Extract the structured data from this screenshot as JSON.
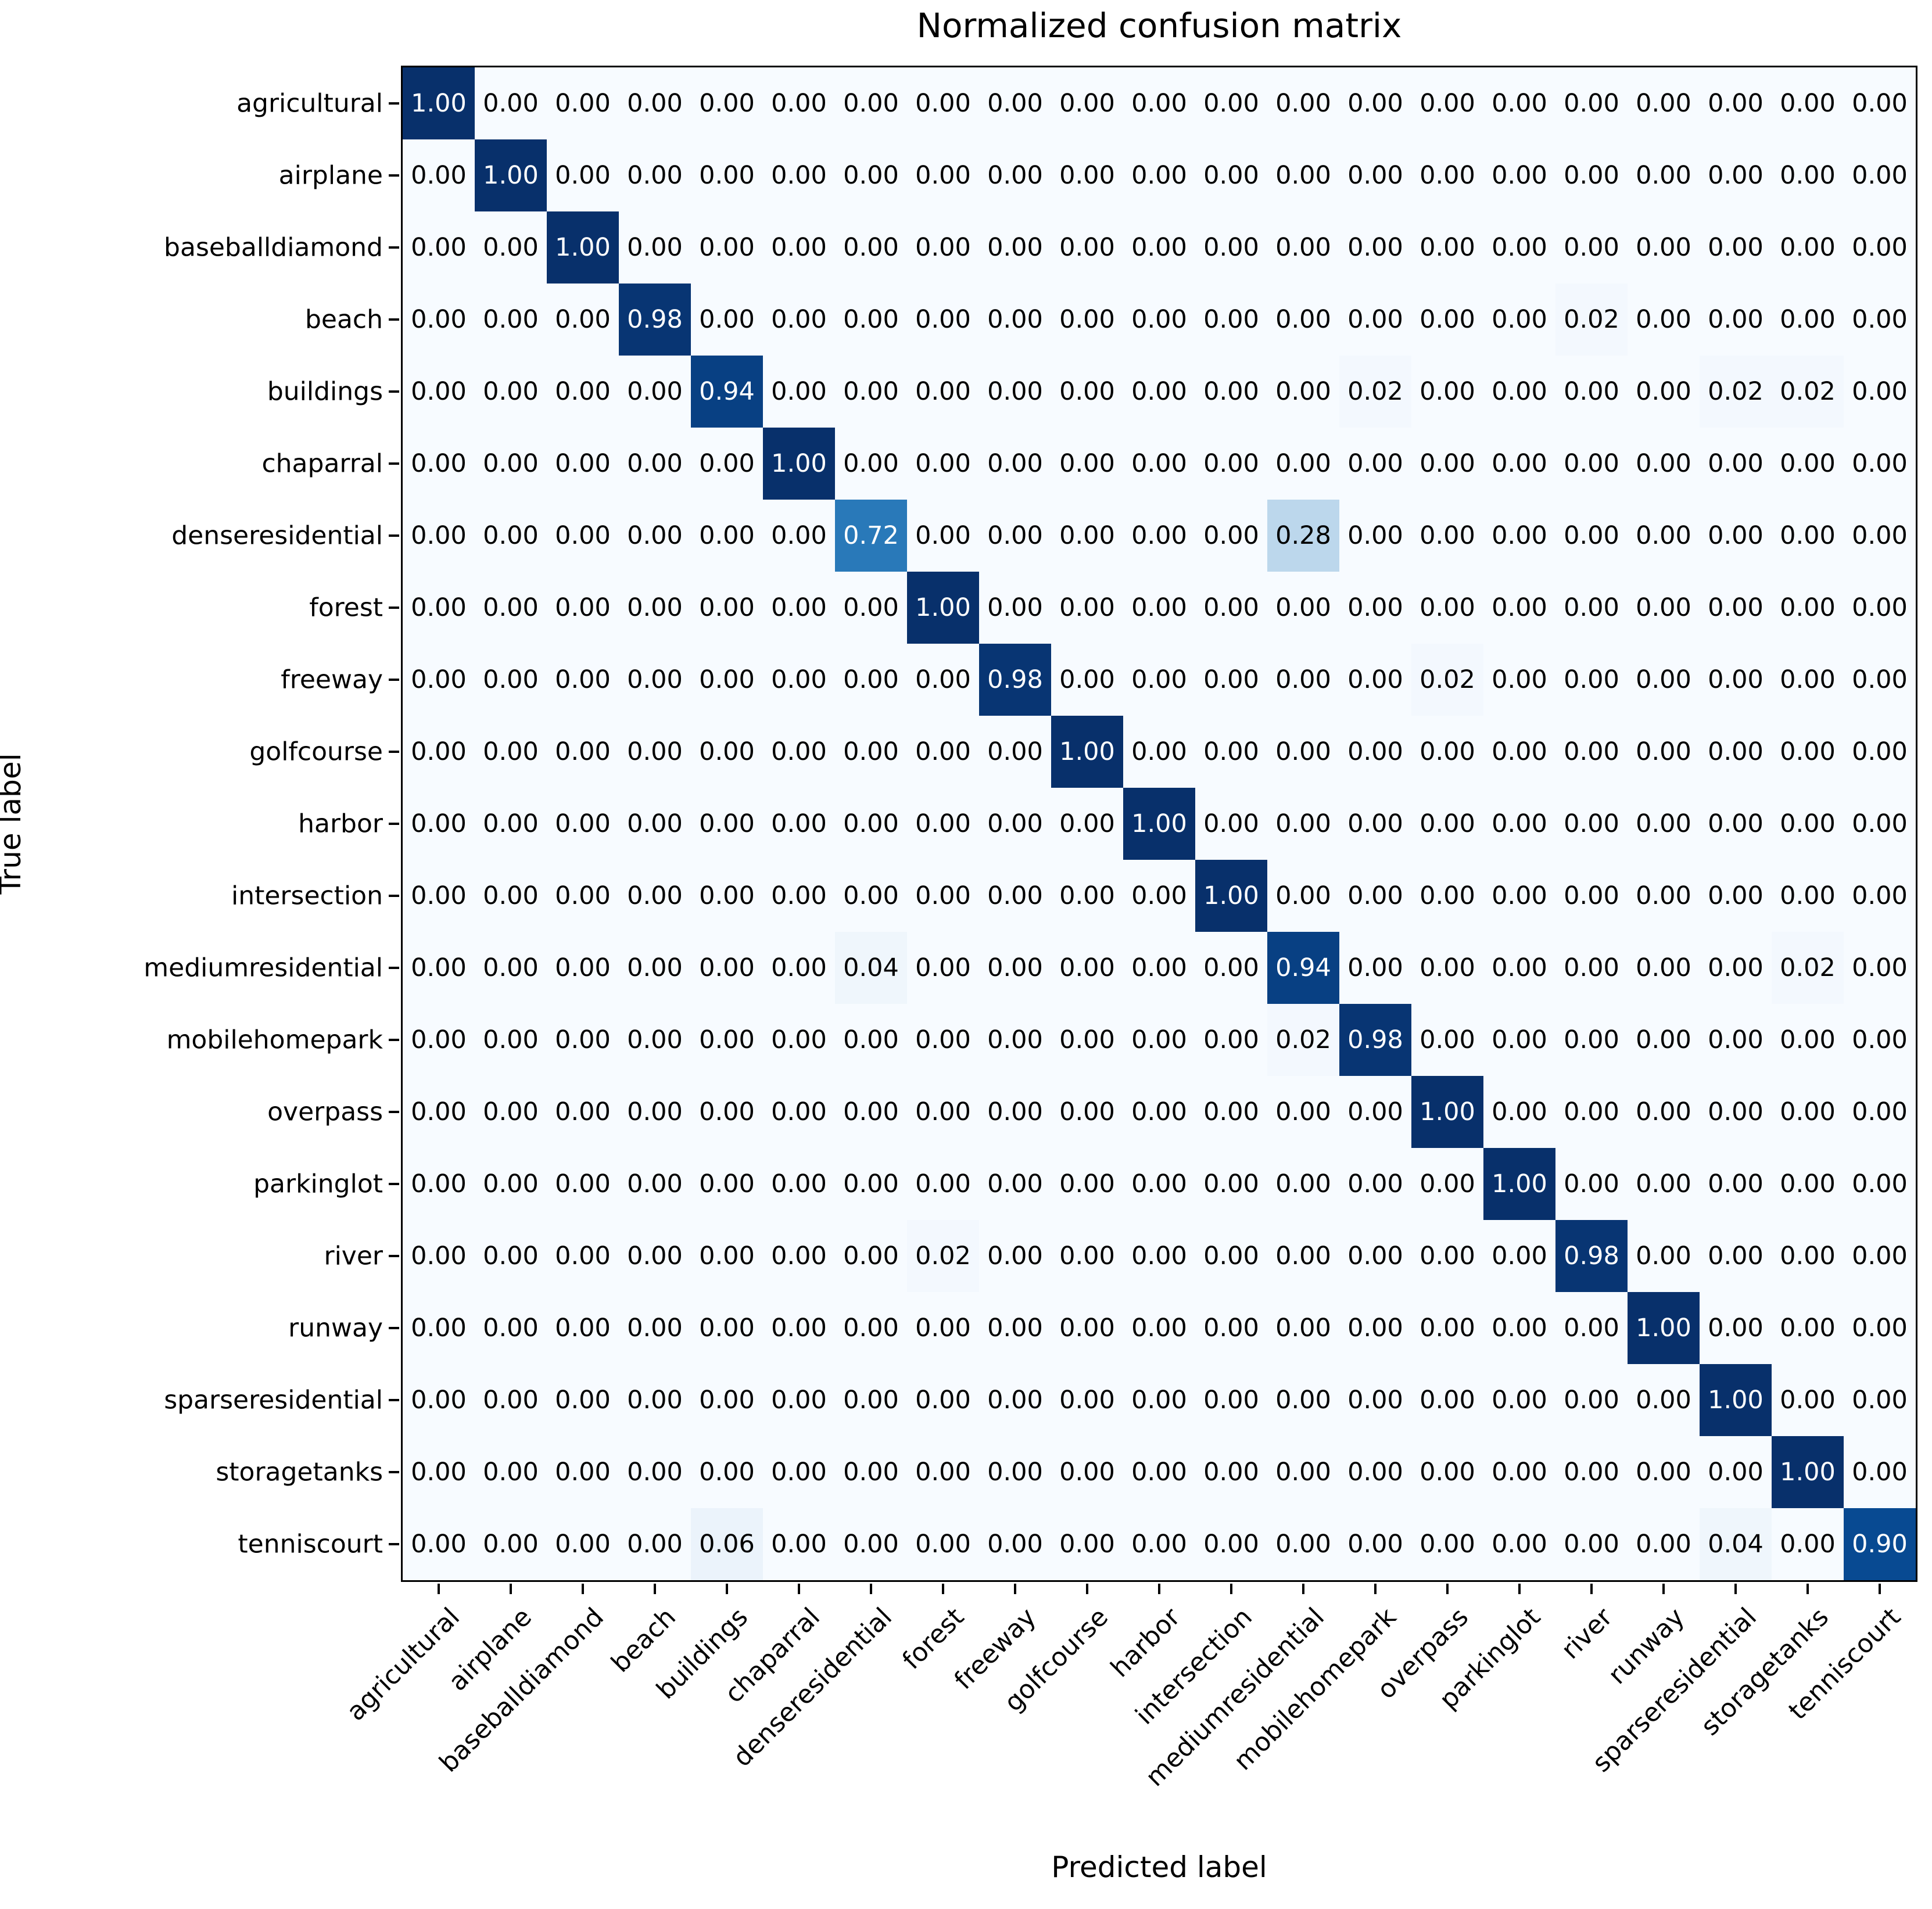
{
  "title": "Normalized confusion matrix",
  "x_axis_label": "Predicted label",
  "y_axis_label": "True label",
  "chart_data": {
    "type": "heatmap",
    "title": "Normalized confusion matrix",
    "xlabel": "Predicted label",
    "ylabel": "True label",
    "legend": "none",
    "grid": false,
    "value_range": [
      0,
      1
    ],
    "text_threshold": 0.5,
    "colormap": "Blues",
    "colormap_anchors": [
      [
        0.0,
        [
          247,
          251,
          255
        ]
      ],
      [
        0.125,
        [
          222,
          235,
          247
        ]
      ],
      [
        0.25,
        [
          198,
          219,
          239
        ]
      ],
      [
        0.375,
        [
          158,
          202,
          225
        ]
      ],
      [
        0.5,
        [
          107,
          174,
          214
        ]
      ],
      [
        0.625,
        [
          66,
          146,
          198
        ]
      ],
      [
        0.75,
        [
          33,
          113,
          181
        ]
      ],
      [
        0.875,
        [
          8,
          81,
          156
        ]
      ],
      [
        1.0,
        [
          8,
          48,
          107
        ]
      ]
    ],
    "classes": [
      "agricultural",
      "airplane",
      "baseballdiamond",
      "beach",
      "buildings",
      "chaparral",
      "denseresidential",
      "forest",
      "freeway",
      "golfcourse",
      "harbor",
      "intersection",
      "mediumresidential",
      "mobilehomepark",
      "overpass",
      "parkinglot",
      "river",
      "runway",
      "sparseresidential",
      "storagetanks",
      "tenniscourt"
    ],
    "matrix": [
      [
        1.0,
        0,
        0,
        0,
        0,
        0,
        0,
        0,
        0,
        0,
        0,
        0,
        0,
        0,
        0,
        0,
        0,
        0,
        0,
        0,
        0
      ],
      [
        0,
        1.0,
        0,
        0,
        0,
        0,
        0,
        0,
        0,
        0,
        0,
        0,
        0,
        0,
        0,
        0,
        0,
        0,
        0,
        0,
        0
      ],
      [
        0,
        0,
        1.0,
        0,
        0,
        0,
        0,
        0,
        0,
        0,
        0,
        0,
        0,
        0,
        0,
        0,
        0,
        0,
        0,
        0,
        0
      ],
      [
        0,
        0,
        0,
        0.98,
        0,
        0,
        0,
        0,
        0,
        0,
        0,
        0,
        0,
        0,
        0,
        0,
        0.02,
        0,
        0,
        0,
        0
      ],
      [
        0,
        0,
        0,
        0,
        0.94,
        0,
        0,
        0,
        0,
        0,
        0,
        0,
        0,
        0.02,
        0,
        0,
        0,
        0,
        0.02,
        0.02,
        0
      ],
      [
        0,
        0,
        0,
        0,
        0,
        1.0,
        0,
        0,
        0,
        0,
        0,
        0,
        0,
        0,
        0,
        0,
        0,
        0,
        0,
        0,
        0
      ],
      [
        0,
        0,
        0,
        0,
        0,
        0,
        0.72,
        0,
        0,
        0,
        0,
        0,
        0.28,
        0,
        0,
        0,
        0,
        0,
        0,
        0,
        0
      ],
      [
        0,
        0,
        0,
        0,
        0,
        0,
        0,
        1.0,
        0,
        0,
        0,
        0,
        0,
        0,
        0,
        0,
        0,
        0,
        0,
        0,
        0
      ],
      [
        0,
        0,
        0,
        0,
        0,
        0,
        0,
        0,
        0.98,
        0,
        0,
        0,
        0,
        0,
        0.02,
        0,
        0,
        0,
        0,
        0,
        0
      ],
      [
        0,
        0,
        0,
        0,
        0,
        0,
        0,
        0,
        0,
        1.0,
        0,
        0,
        0,
        0,
        0,
        0,
        0,
        0,
        0,
        0,
        0
      ],
      [
        0,
        0,
        0,
        0,
        0,
        0,
        0,
        0,
        0,
        0,
        1.0,
        0,
        0,
        0,
        0,
        0,
        0,
        0,
        0,
        0,
        0
      ],
      [
        0,
        0,
        0,
        0,
        0,
        0,
        0,
        0,
        0,
        0,
        0,
        1.0,
        0,
        0,
        0,
        0,
        0,
        0,
        0,
        0,
        0
      ],
      [
        0,
        0,
        0,
        0,
        0,
        0,
        0.04,
        0,
        0,
        0,
        0,
        0,
        0.94,
        0,
        0,
        0,
        0,
        0,
        0,
        0.02,
        0
      ],
      [
        0,
        0,
        0,
        0,
        0,
        0,
        0,
        0,
        0,
        0,
        0,
        0,
        0.02,
        0.98,
        0,
        0,
        0,
        0,
        0,
        0,
        0
      ],
      [
        0,
        0,
        0,
        0,
        0,
        0,
        0,
        0,
        0,
        0,
        0,
        0,
        0,
        0,
        1.0,
        0,
        0,
        0,
        0,
        0,
        0
      ],
      [
        0,
        0,
        0,
        0,
        0,
        0,
        0,
        0,
        0,
        0,
        0,
        0,
        0,
        0,
        0,
        1.0,
        0,
        0,
        0,
        0,
        0
      ],
      [
        0,
        0,
        0,
        0,
        0,
        0,
        0,
        0.02,
        0,
        0,
        0,
        0,
        0,
        0,
        0,
        0,
        0.98,
        0,
        0,
        0,
        0
      ],
      [
        0,
        0,
        0,
        0,
        0,
        0,
        0,
        0,
        0,
        0,
        0,
        0,
        0,
        0,
        0,
        0,
        0,
        1.0,
        0,
        0,
        0
      ],
      [
        0,
        0,
        0,
        0,
        0,
        0,
        0,
        0,
        0,
        0,
        0,
        0,
        0,
        0,
        0,
        0,
        0,
        0,
        1.0,
        0,
        0
      ],
      [
        0,
        0,
        0,
        0,
        0,
        0,
        0,
        0,
        0,
        0,
        0,
        0,
        0,
        0,
        0,
        0,
        0,
        0,
        0,
        1.0,
        0
      ],
      [
        0,
        0,
        0,
        0,
        0.06,
        0,
        0,
        0,
        0,
        0,
        0,
        0,
        0,
        0,
        0,
        0,
        0,
        0,
        0.04,
        0,
        0.9
      ]
    ]
  }
}
